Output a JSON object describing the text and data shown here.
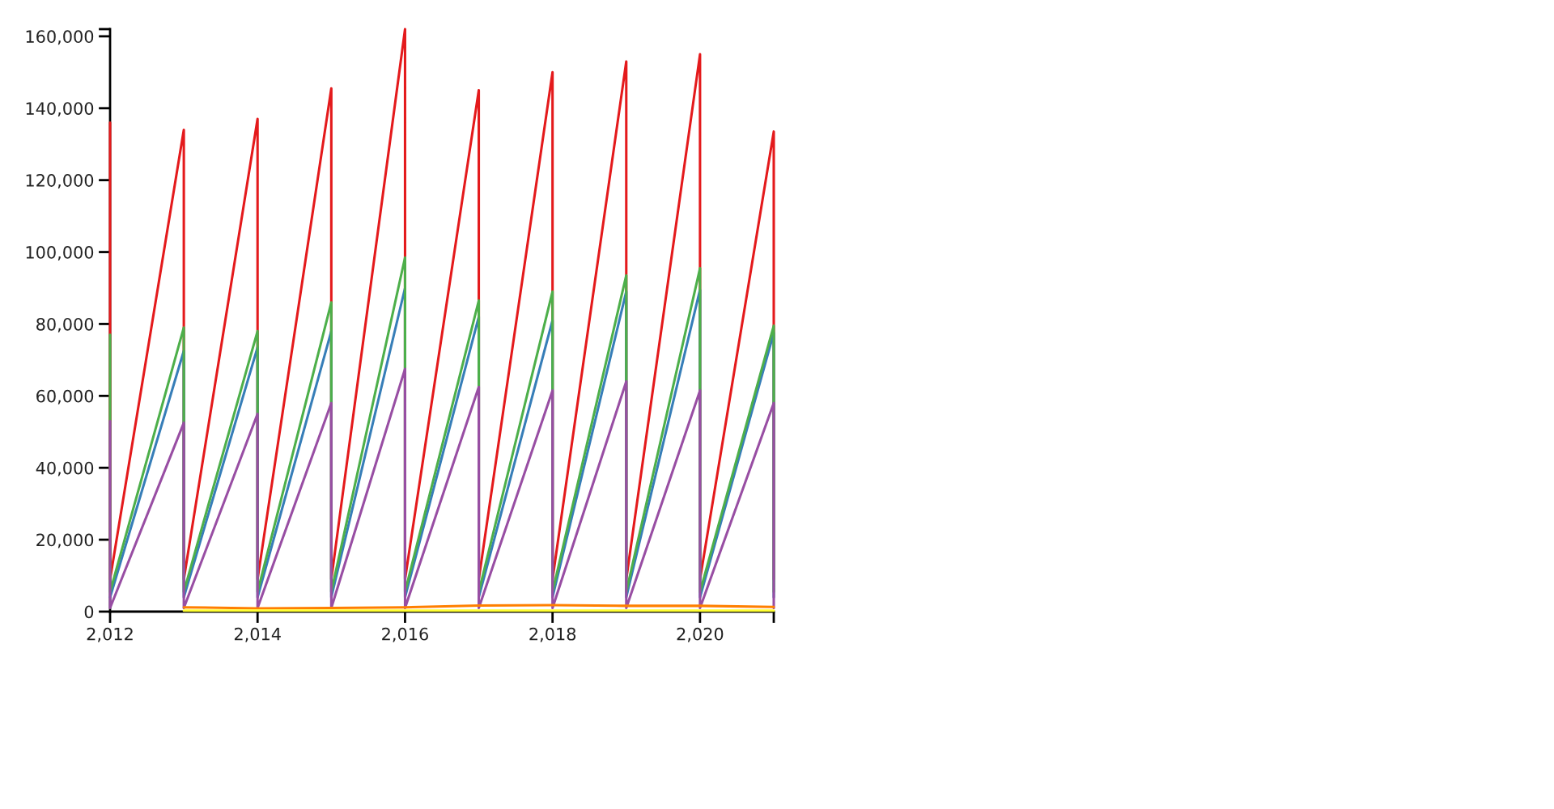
{
  "chart_data": {
    "type": "line",
    "xlim": [
      2012,
      2021
    ],
    "xticks": [
      {
        "value": 2012,
        "label": "2,012"
      },
      {
        "value": 2014,
        "label": "2,014"
      },
      {
        "value": 2016,
        "label": "2,016"
      },
      {
        "value": 2018,
        "label": "2,018"
      },
      {
        "value": 2020,
        "label": "2,020"
      },
      {
        "value": 2021,
        "label": null
      }
    ],
    "ylim": [
      0,
      162000
    ],
    "yticks": [
      0,
      {
        "value": 20000,
        "label": "20,000"
      },
      {
        "value": 40000,
        "label": "40,000"
      },
      {
        "value": 60000,
        "label": "60,000"
      },
      {
        "value": 80000,
        "label": "80,000"
      },
      {
        "value": 100000,
        "label": "100,000"
      },
      {
        "value": 120000,
        "label": "120,000"
      },
      {
        "value": 140000,
        "label": "140,000"
      },
      {
        "value": 160000,
        "label": "160,000"
      },
      {
        "value": 162000,
        "label": null
      }
    ],
    "series": [
      {
        "color": "#e41a1c",
        "x": [
          2012,
          2012,
          2013,
          2013,
          2014,
          2014,
          2015,
          2015,
          2016,
          2016,
          2017,
          2017,
          2018,
          2018,
          2019,
          2019,
          2020,
          2020,
          2021,
          2021
        ],
        "values": [
          136000,
          9000,
          134000,
          9000,
          137000,
          9000,
          145500,
          9000,
          162000,
          9000,
          145000,
          9000,
          150000,
          9000,
          153000,
          9000,
          155000,
          9000,
          133500,
          9000
        ]
      },
      {
        "color": "#377eb8",
        "x": [
          2012,
          2013,
          2013,
          2014,
          2014,
          2015,
          2015,
          2016,
          2016,
          2017,
          2017,
          2018,
          2018,
          2019,
          2019,
          2020,
          2020,
          2021,
          2021
        ],
        "values": [
          4000,
          72500,
          4000,
          73500,
          4000,
          78000,
          4000,
          90000,
          4000,
          82000,
          4000,
          81000,
          4000,
          89000,
          4000,
          89500,
          4000,
          77500,
          4000
        ]
      },
      {
        "color": "#4daf4a",
        "x": [
          2012,
          2012,
          2013,
          2013,
          2014,
          2014,
          2015,
          2015,
          2016,
          2016,
          2017,
          2017,
          2018,
          2018,
          2019,
          2019,
          2020,
          2020,
          2021,
          2021
        ],
        "values": [
          77000,
          5500,
          79000,
          5500,
          78000,
          5500,
          86000,
          5500,
          98500,
          5500,
          86500,
          5500,
          89000,
          5500,
          93500,
          5500,
          95500,
          5500,
          79500,
          5500
        ]
      },
      {
        "color": "#984ea3",
        "x": [
          2012,
          2012,
          2013,
          2013,
          2014,
          2014,
          2015,
          2015,
          2016,
          2016,
          2017,
          2017,
          2018,
          2018,
          2019,
          2019,
          2020,
          2020,
          2021,
          2021
        ],
        "values": [
          53000,
          1000,
          52500,
          1000,
          55000,
          1000,
          58000,
          1000,
          67500,
          1000,
          62500,
          1000,
          61500,
          1000,
          64000,
          1000,
          61500,
          1000,
          58000,
          1000
        ]
      },
      {
        "color": "#ff7f00",
        "x": [
          2013,
          2014,
          2015,
          2016,
          2017,
          2018,
          2019,
          2020,
          2021
        ],
        "values": [
          1200,
          900,
          1000,
          1200,
          1700,
          1800,
          1600,
          1600,
          1300
        ]
      },
      {
        "color": "#ffff33",
        "x": [
          2013,
          2014,
          2015,
          2016,
          2017,
          2018,
          2019,
          2020,
          2021
        ],
        "values": [
          300,
          300,
          300,
          300,
          300,
          300,
          300,
          300,
          300
        ]
      }
    ]
  }
}
